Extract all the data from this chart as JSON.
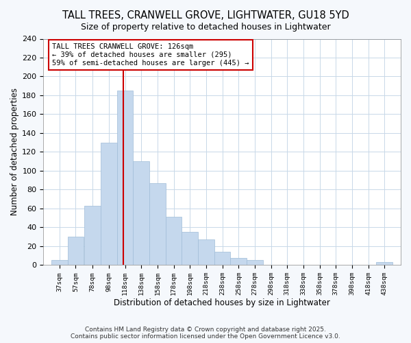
{
  "title": "TALL TREES, CRANWELL GROVE, LIGHTWATER, GU18 5YD",
  "subtitle": "Size of property relative to detached houses in Lightwater",
  "xlabel": "Distribution of detached houses by size in Lightwater",
  "ylabel": "Number of detached properties",
  "bar_color": "#c5d8ed",
  "bar_edge_color": "#a0bcd8",
  "grid_color": "#c8d8e8",
  "bg_color": "#ffffff",
  "fig_bg_color": "#f5f8fc",
  "property_line_color": "#cc0000",
  "property_sqm": 126,
  "bin_starts": [
    37,
    57,
    78,
    98,
    118,
    138,
    158,
    178,
    198,
    218,
    238,
    258,
    278,
    298,
    318,
    338,
    358,
    378,
    398,
    418,
    438
  ],
  "bin_width": 20,
  "counts": [
    5,
    30,
    63,
    130,
    185,
    110,
    87,
    51,
    35,
    27,
    14,
    7,
    5,
    0,
    0,
    0,
    0,
    0,
    0,
    0,
    3
  ],
  "annotation_title": "TALL TREES CRANWELL GROVE: 126sqm",
  "annotation_line1": "← 39% of detached houses are smaller (295)",
  "annotation_line2": "59% of semi-detached houses are larger (445) →",
  "annotation_box_color": "#cc0000",
  "ylim": [
    0,
    240
  ],
  "yticks": [
    0,
    20,
    40,
    60,
    80,
    100,
    120,
    140,
    160,
    180,
    200,
    220,
    240
  ],
  "tick_labels": [
    "37sqm",
    "57sqm",
    "78sqm",
    "98sqm",
    "118sqm",
    "138sqm",
    "158sqm",
    "178sqm",
    "198sqm",
    "218sqm",
    "238sqm",
    "258sqm",
    "278sqm",
    "298sqm",
    "318sqm",
    "338sqm",
    "358sqm",
    "378sqm",
    "398sqm",
    "418sqm",
    "438sqm"
  ],
  "footnote1": "Contains HM Land Registry data © Crown copyright and database right 2025.",
  "footnote2": "Contains public sector information licensed under the Open Government Licence v3.0."
}
